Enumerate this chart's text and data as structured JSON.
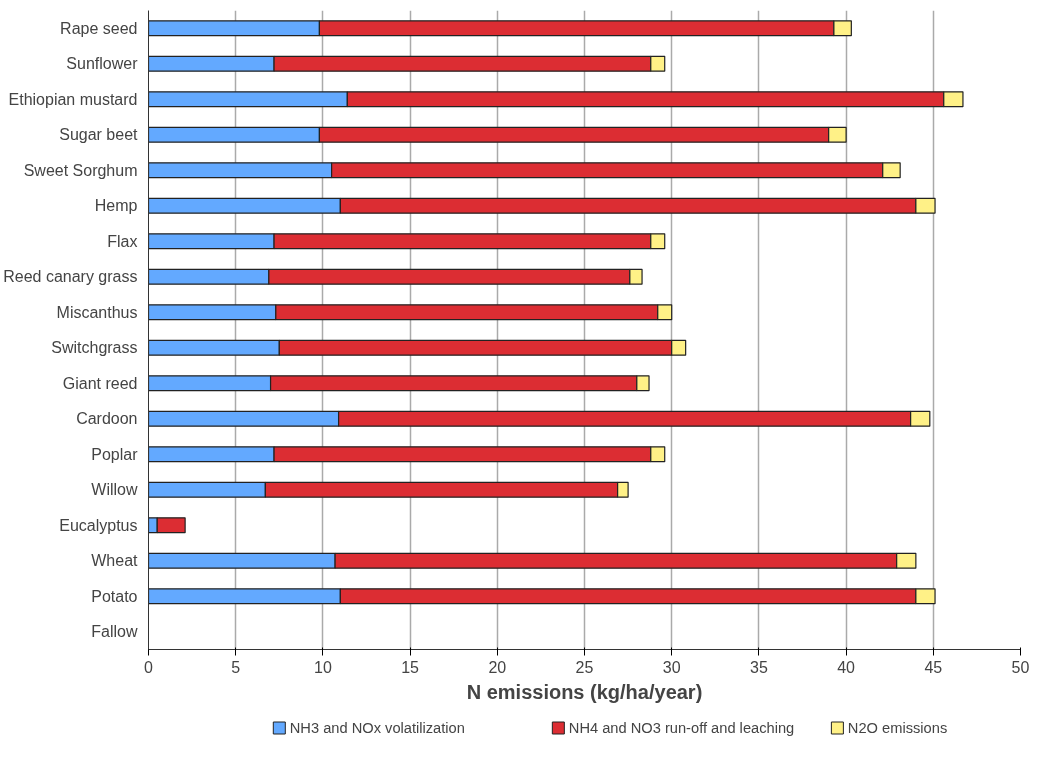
{
  "chart_data": {
    "type": "bar",
    "orientation": "horizontal",
    "stacked": true,
    "xlabel": "N emissions (kg/ha/year)",
    "categories": [
      "Rape seed",
      "Sunflower",
      "Ethiopian mustard",
      "Sugar beet",
      "Sweet Sorghum",
      "Hemp",
      "Flax",
      "Reed canary grass",
      "Miscanthus",
      "Switchgrass",
      "Giant reed",
      "Cardoon",
      "Poplar",
      "Willow",
      "Eucalyptus",
      "Wheat",
      "Potato",
      "Fallow"
    ],
    "series": [
      {
        "name": "NH3 and NOx volatilization",
        "color": "#63a9ff",
        "values": [
          9.8,
          7.2,
          11.4,
          9.8,
          10.5,
          11.0,
          7.2,
          6.9,
          7.3,
          7.5,
          7.0,
          10.9,
          7.2,
          6.7,
          0.5,
          10.7,
          11.0,
          null
        ]
      },
      {
        "name": "NH4 and NO3 run-off and leaching",
        "color": "#dc2d33",
        "values": [
          29.5,
          21.6,
          34.2,
          29.2,
          31.6,
          33.0,
          21.6,
          20.7,
          21.9,
          22.5,
          21.0,
          32.8,
          21.6,
          20.2,
          1.6,
          32.2,
          33.0,
          null
        ]
      },
      {
        "name": "N2O emissions",
        "color": "#fff187",
        "values": [
          1.0,
          0.8,
          1.1,
          1.0,
          1.0,
          1.1,
          0.8,
          0.7,
          0.8,
          0.8,
          0.7,
          1.1,
          0.8,
          0.6,
          null,
          1.1,
          1.1,
          null
        ]
      }
    ],
    "xlim": [
      0,
      50
    ],
    "xticks": [
      0,
      5,
      10,
      15,
      20,
      25,
      30,
      35,
      40,
      45,
      50
    ],
    "grid": "x",
    "legend": "bottom"
  }
}
